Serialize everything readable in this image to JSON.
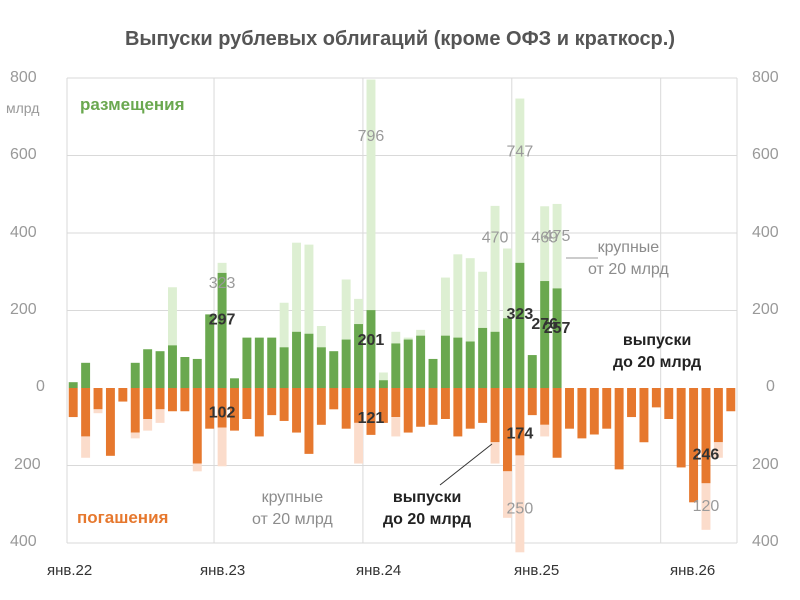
{
  "title": "Выпуски рублевых облигаций (кроме ОФЗ и краткоср.)",
  "unit_label": "млрд",
  "legend": {
    "placements": "размещения",
    "redemptions": "погашения"
  },
  "annotations": {
    "large_top": "крупные\nот 20 млрд",
    "small_top": "выпуски\nдо 20 млрд",
    "large_bottom": "крупные\nот 20 млрд",
    "small_bottom": "выпуски\nдо 20 млрд"
  },
  "colors": {
    "placements_small": "#6aa84f",
    "placements_large": "#ddefd2",
    "redemptions_small": "#e6782e",
    "redemptions_large": "#fbdccb",
    "grid": "#d9d9d9"
  },
  "chart_data": {
    "type": "bar",
    "title": "Выпуски рублевых облигаций (кроме ОФЗ и краткоср.)",
    "stacked": true,
    "x_start": "янв.22",
    "x_ticks": [
      "янв.22",
      "янв.23",
      "янв.24",
      "янв.25",
      "янв.26"
    ],
    "ylim_up": [
      0,
      800
    ],
    "ylim_down": [
      0,
      400
    ],
    "y_ticks_up": [
      0,
      200,
      400,
      600,
      800
    ],
    "y_ticks_down": [
      200,
      400
    ],
    "grid": true,
    "series": [
      {
        "name": "размещения — выпуски до 20 млрд",
        "direction": "up",
        "values": [
          15,
          65,
          0,
          0,
          0,
          65,
          100,
          95,
          110,
          80,
          75,
          190,
          297,
          25,
          130,
          130,
          130,
          105,
          145,
          140,
          105,
          95,
          125,
          165,
          201,
          20,
          115,
          125,
          135,
          75,
          135,
          130,
          120,
          155,
          145,
          180,
          323,
          85,
          276,
          257,
          0,
          0,
          0,
          0,
          0,
          0,
          0,
          0,
          0,
          0,
          0,
          0,
          0,
          0
        ]
      },
      {
        "name": "размещения — крупные от 20 млрд",
        "direction": "up",
        "values": [
          0,
          0,
          0,
          0,
          0,
          0,
          0,
          80,
          260,
          0,
          30,
          110,
          323,
          0,
          80,
          50,
          130,
          220,
          375,
          370,
          160,
          65,
          280,
          230,
          796,
          40,
          145,
          130,
          150,
          0,
          285,
          345,
          335,
          300,
          470,
          360,
          747,
          80,
          469,
          475,
          0,
          0,
          0,
          0,
          0,
          0,
          0,
          0,
          0,
          0,
          0,
          0,
          0,
          0
        ]
      },
      {
        "name": "погашения — выпуски до 20 млрд",
        "direction": "down",
        "values": [
          75,
          125,
          55,
          175,
          35,
          115,
          80,
          55,
          60,
          60,
          195,
          105,
          102,
          110,
          80,
          125,
          70,
          85,
          115,
          170,
          95,
          55,
          105,
          90,
          121,
          90,
          75,
          115,
          100,
          95,
          80,
          125,
          105,
          90,
          140,
          215,
          174,
          70,
          95,
          180,
          105,
          130,
          120,
          105,
          210,
          75,
          140,
          50,
          80,
          205,
          295,
          246,
          140,
          60
        ]
      },
      {
        "name": "погашения — крупные от 20 млрд",
        "direction": "down",
        "values": [
          0,
          55,
          10,
          0,
          0,
          15,
          30,
          35,
          0,
          0,
          20,
          0,
          100,
          0,
          0,
          0,
          0,
          0,
          0,
          0,
          0,
          0,
          0,
          105,
          0,
          0,
          50,
          0,
          0,
          0,
          0,
          0,
          0,
          0,
          55,
          120,
          250,
          0,
          30,
          0,
          0,
          0,
          0,
          0,
          0,
          0,
          0,
          0,
          0,
          0,
          0,
          120,
          40,
          0
        ]
      }
    ]
  }
}
